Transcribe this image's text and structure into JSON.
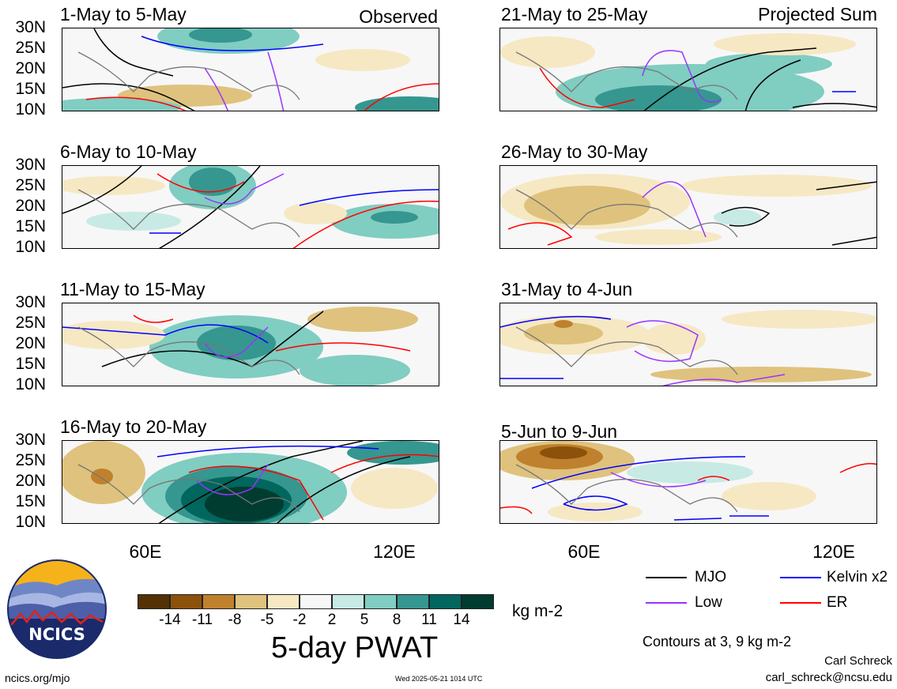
{
  "panels": [
    {
      "title": "1-May to 5-May",
      "corner": "Observed"
    },
    {
      "title": "6-May to 10-May",
      "corner": ""
    },
    {
      "title": "11-May to 15-May",
      "corner": ""
    },
    {
      "title": "16-May to 20-May",
      "corner": ""
    },
    {
      "title": "21-May to 25-May",
      "corner": "Projected Sum"
    },
    {
      "title": "26-May to 30-May",
      "corner": ""
    },
    {
      "title": "31-May to 4-Jun",
      "corner": ""
    },
    {
      "title": "5-Jun to 9-Jun",
      "corner": ""
    }
  ],
  "latitude_labels": [
    "30N",
    "25N",
    "20N",
    "15N",
    "10N"
  ],
  "longitude_labels": [
    "60E",
    "120E"
  ],
  "colorbar": {
    "tick_labels": [
      "-14",
      "-11",
      "-8",
      "-5",
      "-2",
      "2",
      "5",
      "8",
      "11",
      "14"
    ],
    "units": "kg m-2",
    "colors": [
      "#543005",
      "#8c510a",
      "#bf812d",
      "#dfc27d",
      "#f6e8c3",
      "#f7f7f7",
      "#c7eae5",
      "#80cdc1",
      "#35978f",
      "#01665e",
      "#003c30"
    ]
  },
  "variable_title": "5-day PWAT",
  "legend": [
    {
      "label": "MJO",
      "color": "#000000"
    },
    {
      "label": "Kelvin x2",
      "color": "#0000ff"
    },
    {
      "label": "Low",
      "color": "#9933ff"
    },
    {
      "label": "ER",
      "color": "#ff0000"
    }
  ],
  "contour_note": "Contours at 3, 9 kg m-2",
  "author": "Carl Schreck",
  "email": "carl_schreck@ncsu.edu",
  "site": "ncics.org/mjo",
  "timestamp": "Wed 2025-05-21 1014 UTC",
  "logo_text": "NCICS"
}
